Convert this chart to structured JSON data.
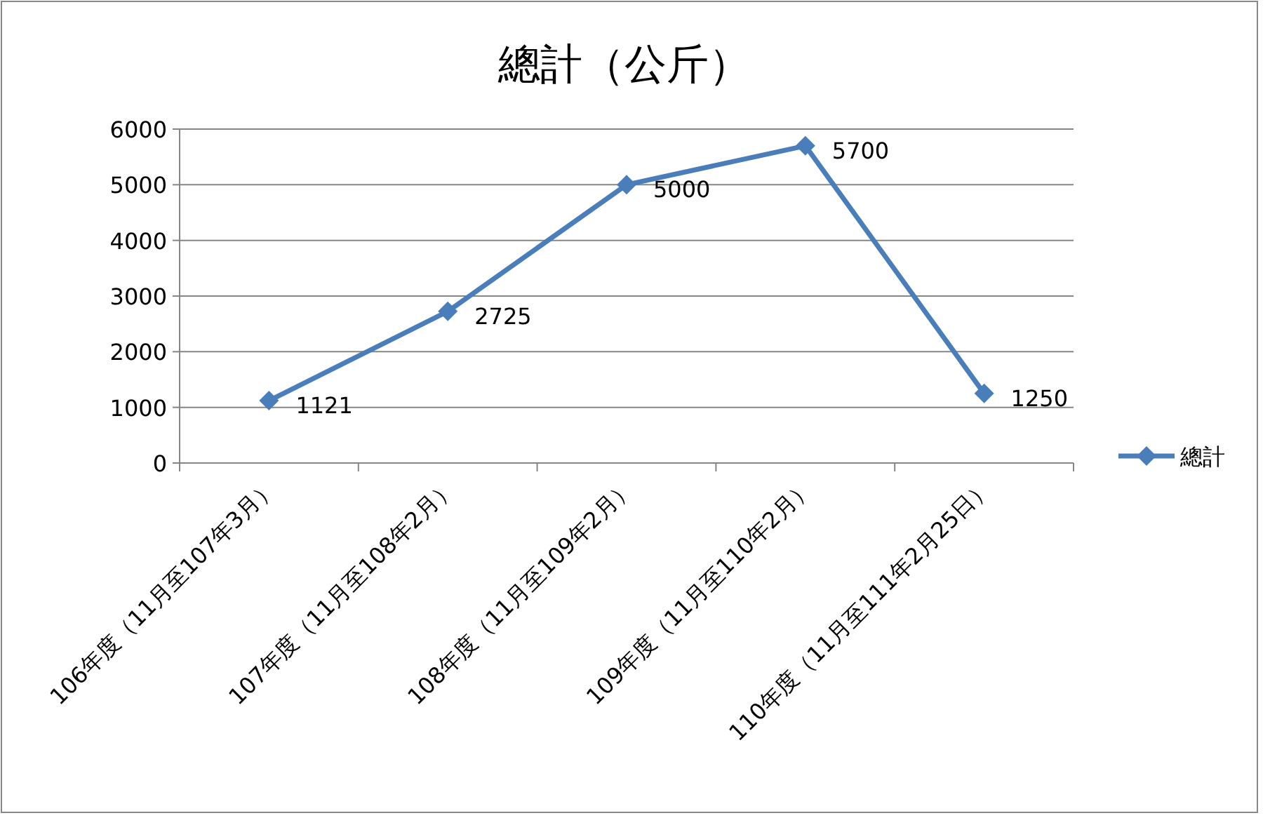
{
  "chart_data": {
    "type": "line",
    "title": "總計（公斤）",
    "categories": [
      "106年度（11月至107年3月）",
      "107年度（11月至108年2月）",
      "108年度（11月至109年2月）",
      "109年度（11月至110年2月）",
      "110年度（11月至111年2月25日）"
    ],
    "series": [
      {
        "name": "總計",
        "color": "#4a7ebb",
        "values": [
          1121,
          2725,
          5000,
          5700,
          1250
        ]
      }
    ],
    "ylim": [
      0,
      6000
    ],
    "yticks": [
      0,
      1000,
      2000,
      3000,
      4000,
      5000,
      6000
    ],
    "grid": "y",
    "legend": "right",
    "marker": "diamond",
    "line_style": "solid",
    "data_labels": true
  }
}
